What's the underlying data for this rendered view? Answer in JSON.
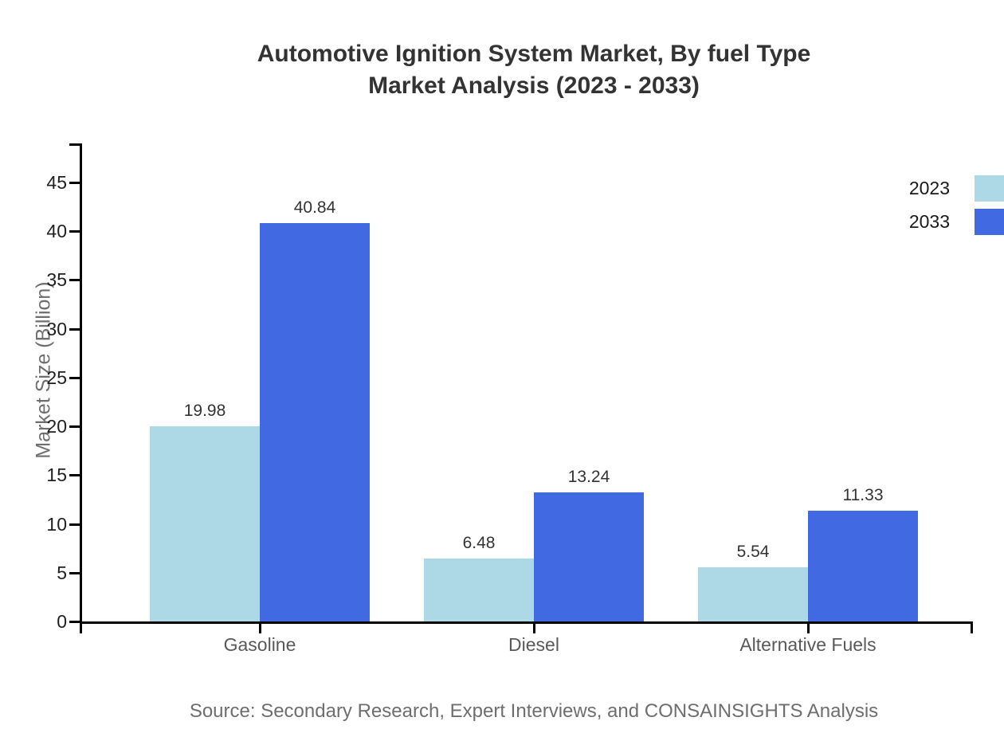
{
  "title": {
    "line1": "Automotive Ignition System Market, By fuel Type",
    "line2": "Market Analysis (2023 - 2033)"
  },
  "source": "Source: Secondary Research, Expert Interviews, and CONSAINSIGHTS Analysis",
  "colors": {
    "series_2023": "#ADD8E6",
    "series_2033": "#4169E1",
    "axis": "#000000",
    "title_text": "#333333",
    "tick_text": "#1f1f1f",
    "category_text": "#595959",
    "muted_text": "#6e6e6e"
  },
  "chart_data": {
    "type": "bar",
    "title": "Automotive Ignition System Market, By fuel Type Market Analysis (2023 - 2033)",
    "categories": [
      "Gasoline",
      "Diesel",
      "Alternative Fuels"
    ],
    "series": [
      {
        "name": "2023",
        "color": "#ADD8E6",
        "values": [
          19.98,
          6.48,
          5.54
        ]
      },
      {
        "name": "2033",
        "color": "#4169E1",
        "values": [
          40.84,
          13.24,
          11.33
        ]
      }
    ],
    "xlabel": "",
    "ylabel": "Market Size (Billion)",
    "ylim": [
      0,
      49
    ],
    "yticks": [
      0,
      5,
      10,
      15,
      20,
      25,
      30,
      35,
      40,
      45
    ],
    "grid": false,
    "value_labels": true,
    "legend_position": "top-right"
  }
}
